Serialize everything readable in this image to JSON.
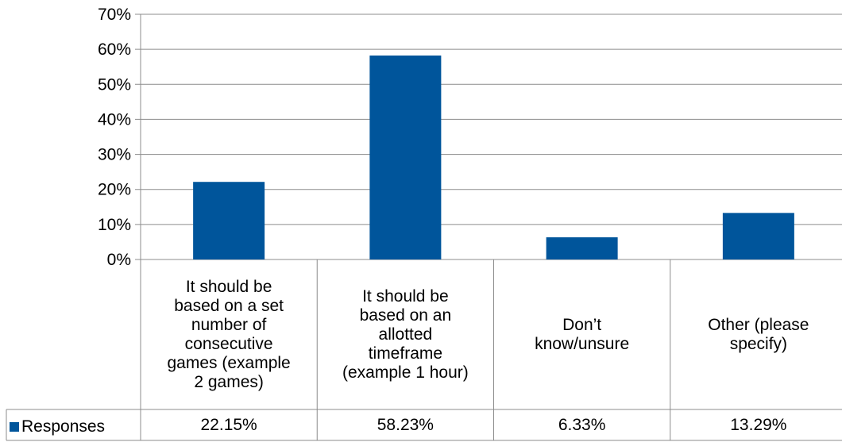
{
  "chart_data": {
    "type": "bar",
    "categories": [
      "It should be\nbased on a set\nnumber of\nconsecutive\ngames (example\n2 games)",
      "It should be\nbased on an\nallotted\ntimeframe\n(example 1 hour)",
      "Don’t\nknow/unsure",
      "Other (please\nspecify)"
    ],
    "series": [
      {
        "name": "Responses",
        "values": [
          22.15,
          58.23,
          6.33,
          13.29
        ],
        "color": "#00559B"
      }
    ],
    "value_labels": [
      "22.15%",
      "58.23%",
      "6.33%",
      "13.29%"
    ],
    "y_ticks": [
      "0%",
      "10%",
      "20%",
      "30%",
      "40%",
      "50%",
      "60%",
      "70%"
    ],
    "ylim": [
      0,
      70
    ],
    "grid": true,
    "legend": "data-table-left"
  }
}
